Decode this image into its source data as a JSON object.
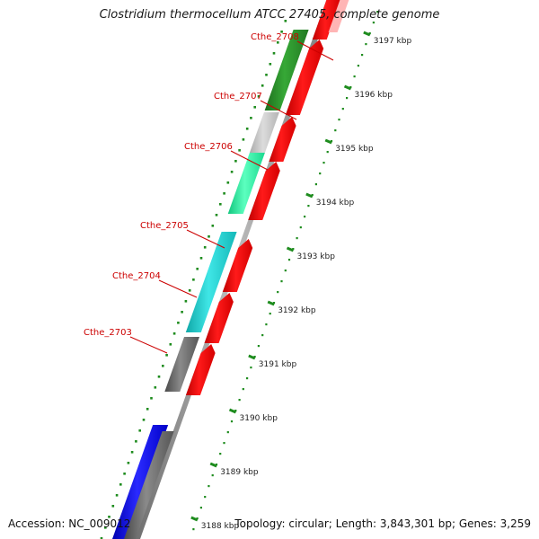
{
  "title": "Clostridium thermocellum ATCC 27405, complete genome",
  "footer": {
    "accession": "Accession: NC_009012",
    "summary": "Topology: circular; Length: 3,843,301 bp; Genes: 3,259"
  },
  "ticks": [
    "3188 kbp",
    "3189 kbp",
    "3190 kbp",
    "3191 kbp",
    "3192 kbp",
    "3193 kbp",
    "3194 kbp",
    "3195 kbp",
    "3196 kbp",
    "3197 kbp"
  ],
  "gene_labels": [
    "Cthe_2703",
    "Cthe_2704",
    "Cthe_2705",
    "Cthe_2706",
    "Cthe_2707",
    "Cthe_2708"
  ],
  "colors": {
    "tick_green": "#1e8c1e",
    "label_red": "#cc0000",
    "cds_red": "#ff0000",
    "backbone": "#9a9a9a",
    "dark_green": "#2a8a2a",
    "light_gray": "#c8c8c8",
    "aqua": "#2ef0a0",
    "cyan": "#1fd4d4",
    "dark_gray": "#6e6e6e",
    "blue": "#0000ee"
  }
}
